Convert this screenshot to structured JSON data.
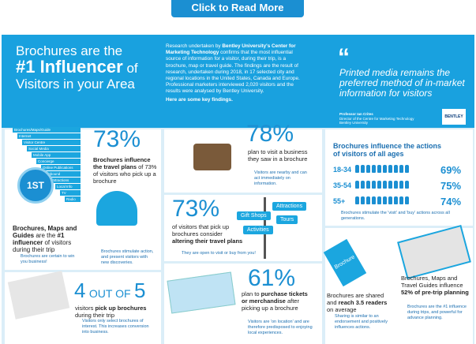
{
  "button": "Click to Read More",
  "header": {
    "title_1": "Brochures are the",
    "title_2": "#1 Influencer",
    "title_3": "of",
    "title_4": "Visitors in your Area",
    "research_1": "Research undertaken by",
    "research_org": "Bentley University's Center for Marketing Technology",
    "research_2": "confirms that the most influential source of information for a visitor, during their trip, is a brochure, map or travel guide. The findings are the result of research, undertaken during 2018, in 17 selected city and regional locations in the United States, Canada and Europe. Professional marketers interviewed 2,020 visitors and the results were analysed by Bentley University.",
    "findings": "Here are some key findings.",
    "quote": "Printed media remains the preferred method of in-market information for visitors",
    "author": "Professor Ian Crites",
    "author_role": "Director of the Centre for Marketing Technology Bentley University",
    "logo": "BENTLEY"
  },
  "ranking": {
    "items": [
      "Brochures/Maps/Guide",
      "Internet",
      "Visitor Centre",
      "Social Media",
      "Mobile App",
      "Concierge",
      "Online Publications",
      "Inbound",
      "Attractions",
      "Local Info",
      "TV",
      "Radio"
    ],
    "badge": "1ST",
    "text_1": "Brochures, Maps and Guides",
    "text_2": "are the",
    "text_3": "#1 influencer",
    "text_4": "of visitors during their trip",
    "note": "Brochures are certain to win you business!"
  },
  "p73a": {
    "stat": "73%",
    "text_bold": "Brochures influence the travel plans",
    "text": "of 73% of visitors who pick up a brochure",
    "note": "Brochures stimulate action, and present visitors with new discoveries."
  },
  "p78": {
    "stat": "78%",
    "text": "plan to visit a business they saw in a brochure",
    "note": "Visitors are nearby and can act immediately on information."
  },
  "p73b": {
    "stat": "73%",
    "text": "of visitors that pick up brochures consider",
    "text_bold": "altering their travel plans",
    "signs": [
      "Attractions",
      "Gift Shops",
      "Tours",
      "Activities"
    ],
    "note": "They are open to visit or buy from you!"
  },
  "ages": {
    "title": "Brochures influence the actions of visitors of all ages",
    "rows": [
      {
        "age": "18-34",
        "pct": "69%"
      },
      {
        "age": "35-54",
        "pct": "75%"
      },
      {
        "age": "55+",
        "pct": "74%"
      }
    ],
    "note": "Brochures stimulate the 'visit' and 'buy' actions across all generations."
  },
  "p45": {
    "stat_1": "4",
    "stat_2": "OUT OF",
    "stat_3": "5",
    "text": "visitors",
    "text_bold": "pick up brochures",
    "text_2": "during their trip",
    "note": "Visitors only select brochures of interest. This increases conversion into business."
  },
  "p61": {
    "stat": "61%",
    "text": "plan to",
    "text_bold": "purchase tickets or merchandise",
    "text_2": "after picking up a brochure",
    "note": "Visitors are 'on location' and are therefore predisposed to enjoying local experiences."
  },
  "shared": {
    "label": "Brochure",
    "text": "Brochures are shared and",
    "text_bold": "reach 3.5 readers",
    "text_2": "on average",
    "note": "Sharing is similar to an endorsement and positively influences actions."
  },
  "pretrip": {
    "text": "Brochures, Maps and Travel Guides influence",
    "text_bold": "52% of pre-trip planning",
    "note": "Brochures are the #1 influence during trips, and powerful for advance planning."
  }
}
